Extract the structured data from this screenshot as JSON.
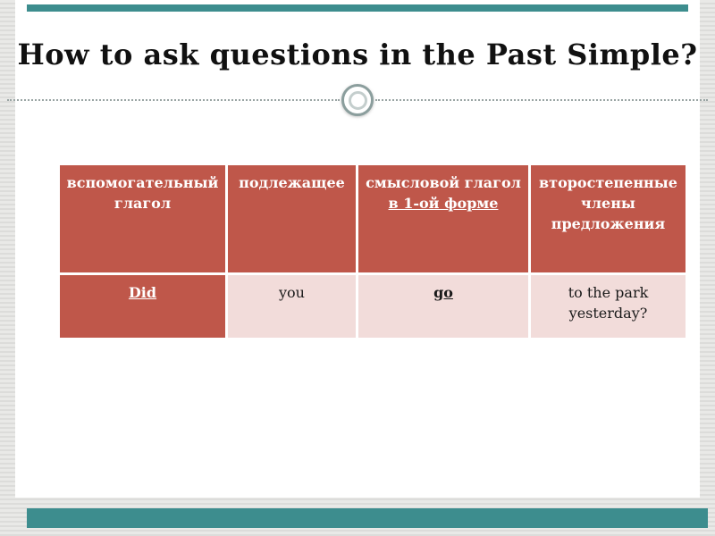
{
  "slide": {
    "title": "How to ask questions in the Past Simple?"
  },
  "table": {
    "headers": {
      "auxiliary_verb": "вспомогательный глагол",
      "subject": "подлежащее",
      "main_verb_line1": "смысловой глагол",
      "main_verb_line2": "в 1-ой форме",
      "secondary_members": "второстепенные члены предложения"
    },
    "row": {
      "auxiliary_verb": "Did",
      "subject": "you",
      "main_verb": "go",
      "secondary_members": "to the park yesterday?"
    }
  },
  "colors": {
    "accent_teal": "#3d8d8e",
    "header_bg": "#bf574a",
    "row_bg": "#f2dcda",
    "circle_ring": "#8b9e9d"
  }
}
